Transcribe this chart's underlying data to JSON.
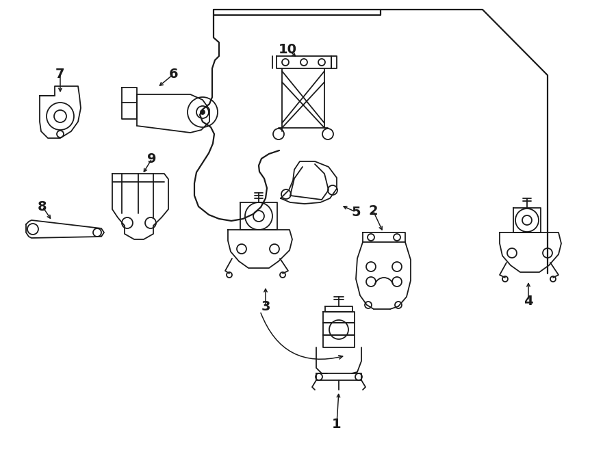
{
  "background_color": "#ffffff",
  "line_color": "#1a1a1a",
  "lw": 1.3,
  "fig_w": 9.0,
  "fig_h": 6.61,
  "dpi": 100
}
